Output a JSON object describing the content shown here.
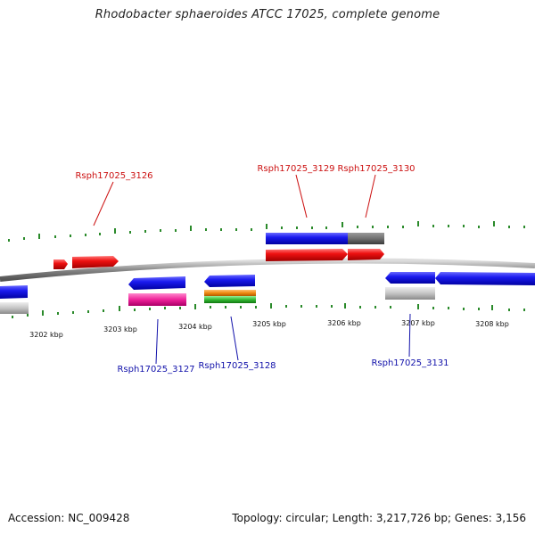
{
  "title": "Rhodobacter sphaeroides ATCC 17025, complete genome",
  "footer": {
    "accession": "Accession: NC_009428",
    "summary": "Topology: circular; Length: 3,217,726 bp; Genes: 3,156"
  },
  "ticks": [
    "3202 kbp",
    "3203 kbp",
    "3204 kbp",
    "3205 kbp",
    "3206 kbp",
    "3207 kbp",
    "3208 kbp"
  ],
  "genes": {
    "g3126": "Rsph17025_3126",
    "g3127": "Rsph17025_3127",
    "g3128": "Rsph17025_3128",
    "g3129": "Rsph17025_3129",
    "g3130": "Rsph17025_3130",
    "g3131": "Rsph17025_3131"
  },
  "colors": {
    "red": "#ee1111",
    "blue": "#1a1aee",
    "gray": "#bdbdbd",
    "darkgray": "#707070",
    "magenta": "#ee2299",
    "orange": "#f08a10",
    "green": "#33bb33",
    "tick": "#2a8a2a",
    "backbone": "#888888"
  }
}
